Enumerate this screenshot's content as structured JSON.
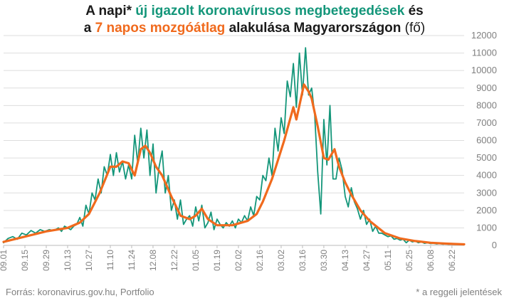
{
  "title": {
    "line1_a": "A napi* ",
    "line1_b": "új igazolt koronavírusos megbetegedések",
    "line1_c": " és",
    "line2_a": "a ",
    "line2_b": "7 napos mozgóátlag",
    "line2_c": " alakulása Magyarországon",
    "line2_d": " (fő)"
  },
  "source": "Forrás: koronavirus.gov.hu, Portfolio",
  "footnote": "* a reggeli jelentések",
  "colors": {
    "daily": "#14967a",
    "average": "#f06a1d",
    "grid": "#dddddd",
    "axis": "#808080"
  },
  "chart_data": {
    "type": "line",
    "y_ticks": [
      "0",
      "1000",
      "2000",
      "3000",
      "4000",
      "5000",
      "6000",
      "7000",
      "8000",
      "9000",
      "10000",
      "11000",
      "12000"
    ],
    "ylim": [
      0,
      12000
    ],
    "x_tick_labels": [
      "09.01",
      "09.15",
      "09.29",
      "10.13",
      "10.27",
      "11.10",
      "11.24",
      "12.08",
      "12.22",
      "01.05",
      "01.19",
      "02.02",
      "02.16",
      "03.02",
      "03.16",
      "03.30",
      "04.13",
      "04.27",
      "05.11",
      "05.25",
      "06.08",
      "06.22"
    ],
    "x_start": "2020-09-01",
    "days": 302,
    "series": [
      {
        "key": "daily",
        "anchors": [
          [
            0,
            150
          ],
          [
            3,
            400
          ],
          [
            6,
            500
          ],
          [
            9,
            350
          ],
          [
            12,
            700
          ],
          [
            15,
            600
          ],
          [
            18,
            850
          ],
          [
            21,
            700
          ],
          [
            24,
            900
          ],
          [
            27,
            800
          ],
          [
            30,
            900
          ],
          [
            33,
            850
          ],
          [
            36,
            1000
          ],
          [
            38,
            800
          ],
          [
            40,
            1100
          ],
          [
            42,
            1000
          ],
          [
            44,
            900
          ],
          [
            46,
            1100
          ],
          [
            48,
            1200
          ],
          [
            50,
            1600
          ],
          [
            52,
            1100
          ],
          [
            54,
            2300
          ],
          [
            56,
            1800
          ],
          [
            58,
            3000
          ],
          [
            60,
            2600
          ],
          [
            62,
            3800
          ],
          [
            64,
            3000
          ],
          [
            66,
            4500
          ],
          [
            68,
            4000
          ],
          [
            70,
            5200
          ],
          [
            72,
            4000
          ],
          [
            74,
            5300
          ],
          [
            76,
            4200
          ],
          [
            78,
            4800
          ],
          [
            80,
            3800
          ],
          [
            82,
            4600
          ],
          [
            84,
            3800
          ],
          [
            86,
            6300
          ],
          [
            88,
            4700
          ],
          [
            90,
            6700
          ],
          [
            92,
            5000
          ],
          [
            94,
            6600
          ],
          [
            96,
            4000
          ],
          [
            98,
            5800
          ],
          [
            100,
            3000
          ],
          [
            102,
            4500
          ],
          [
            104,
            5400
          ],
          [
            106,
            3000
          ],
          [
            108,
            4000
          ],
          [
            110,
            2000
          ],
          [
            112,
            2600
          ],
          [
            114,
            1500
          ],
          [
            116,
            2600
          ],
          [
            118,
            1200
          ],
          [
            120,
            1500
          ],
          [
            122,
            1700
          ],
          [
            124,
            1100
          ],
          [
            126,
            2200
          ],
          [
            128,
            1400
          ],
          [
            130,
            2300
          ],
          [
            132,
            1000
          ],
          [
            134,
            1300
          ],
          [
            136,
            1900
          ],
          [
            138,
            900
          ],
          [
            140,
            1500
          ],
          [
            142,
            1200
          ],
          [
            144,
            1000
          ],
          [
            146,
            1300
          ],
          [
            148,
            1100
          ],
          [
            150,
            1400
          ],
          [
            152,
            1000
          ],
          [
            154,
            1500
          ],
          [
            156,
            1300
          ],
          [
            158,
            1700
          ],
          [
            160,
            1400
          ],
          [
            162,
            2200
          ],
          [
            164,
            1700
          ],
          [
            166,
            2800
          ],
          [
            168,
            2600
          ],
          [
            170,
            4000
          ],
          [
            172,
            3700
          ],
          [
            174,
            5000
          ],
          [
            176,
            4000
          ],
          [
            178,
            6700
          ],
          [
            180,
            5400
          ],
          [
            182,
            7300
          ],
          [
            184,
            6400
          ],
          [
            186,
            9400
          ],
          [
            188,
            8500
          ],
          [
            190,
            10400
          ],
          [
            192,
            7900
          ],
          [
            194,
            11000
          ],
          [
            196,
            8600
          ],
          [
            198,
            11300
          ],
          [
            200,
            8600
          ],
          [
            202,
            9000
          ],
          [
            204,
            7500
          ],
          [
            206,
            4200
          ],
          [
            208,
            1800
          ],
          [
            210,
            7200
          ],
          [
            212,
            4600
          ],
          [
            214,
            8000
          ],
          [
            216,
            3800
          ],
          [
            218,
            3800
          ],
          [
            220,
            5000
          ],
          [
            222,
            4300
          ],
          [
            224,
            2800
          ],
          [
            226,
            2200
          ],
          [
            228,
            3300
          ],
          [
            230,
            2500
          ],
          [
            232,
            2100
          ],
          [
            234,
            1500
          ],
          [
            236,
            2000
          ],
          [
            238,
            1200
          ],
          [
            240,
            1500
          ],
          [
            242,
            800
          ],
          [
            244,
            1100
          ],
          [
            246,
            700
          ],
          [
            248,
            700
          ],
          [
            250,
            600
          ],
          [
            252,
            500
          ],
          [
            254,
            550
          ],
          [
            256,
            350
          ],
          [
            258,
            400
          ],
          [
            260,
            300
          ],
          [
            262,
            350
          ],
          [
            264,
            150
          ],
          [
            266,
            300
          ],
          [
            268,
            200
          ],
          [
            270,
            250
          ],
          [
            272,
            150
          ],
          [
            274,
            200
          ],
          [
            276,
            120
          ],
          [
            278,
            150
          ],
          [
            280,
            100
          ],
          [
            282,
            120
          ],
          [
            284,
            80
          ],
          [
            286,
            100
          ],
          [
            288,
            70
          ],
          [
            290,
            90
          ],
          [
            292,
            60
          ],
          [
            294,
            80
          ],
          [
            296,
            60
          ],
          [
            298,
            70
          ],
          [
            300,
            60
          ],
          [
            302,
            50
          ]
        ]
      },
      {
        "key": "average",
        "anchors": [
          [
            0,
            200
          ],
          [
            14,
            500
          ],
          [
            28,
            800
          ],
          [
            42,
            1000
          ],
          [
            50,
            1300
          ],
          [
            56,
            1800
          ],
          [
            63,
            3000
          ],
          [
            70,
            4500
          ],
          [
            74,
            4500
          ],
          [
            78,
            4800
          ],
          [
            82,
            4700
          ],
          [
            86,
            4000
          ],
          [
            90,
            5500
          ],
          [
            93,
            5700
          ],
          [
            96,
            5300
          ],
          [
            100,
            4500
          ],
          [
            104,
            4000
          ],
          [
            110,
            2800
          ],
          [
            116,
            1700
          ],
          [
            122,
            1500
          ],
          [
            126,
            1700
          ],
          [
            130,
            2100
          ],
          [
            134,
            1500
          ],
          [
            140,
            1150
          ],
          [
            150,
            1150
          ],
          [
            160,
            1400
          ],
          [
            166,
            1800
          ],
          [
            170,
            2500
          ],
          [
            176,
            3800
          ],
          [
            184,
            6000
          ],
          [
            190,
            7900
          ],
          [
            192,
            7200
          ],
          [
            197,
            9200
          ],
          [
            200,
            8800
          ],
          [
            202,
            8400
          ],
          [
            206,
            6800
          ],
          [
            210,
            5000
          ],
          [
            213,
            4900
          ],
          [
            217,
            5500
          ],
          [
            220,
            4500
          ],
          [
            224,
            3600
          ],
          [
            228,
            2900
          ],
          [
            234,
            2000
          ],
          [
            240,
            1400
          ],
          [
            250,
            700
          ],
          [
            260,
            400
          ],
          [
            270,
            250
          ],
          [
            280,
            150
          ],
          [
            290,
            100
          ],
          [
            302,
            60
          ]
        ]
      }
    ]
  }
}
